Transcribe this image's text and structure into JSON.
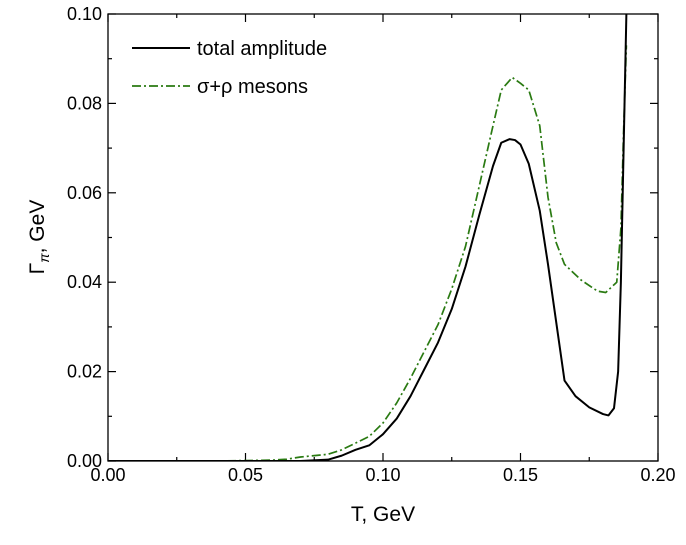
{
  "chart_data": {
    "type": "line",
    "xlabel": "T, GeV",
    "ylabel": {
      "symbol": "Γ",
      "subscript": "π",
      "suffix": ", GeV"
    },
    "xlim": [
      0.0,
      0.2
    ],
    "ylim": [
      0.0,
      0.1
    ],
    "xticks": [
      "0.00",
      "0.05",
      "0.10",
      "0.15",
      "0.20"
    ],
    "yticks": [
      "0.00",
      "0.02",
      "0.04",
      "0.06",
      "0.08",
      "0.10"
    ],
    "grid": false,
    "legend_position": "top-left",
    "series": [
      {
        "name": "total amplitude",
        "color": "#000000",
        "style": "solid",
        "points": [
          [
            0.0,
            0.0
          ],
          [
            0.04,
            0.0
          ],
          [
            0.07,
            0.0
          ],
          [
            0.08,
            0.0003
          ],
          [
            0.085,
            0.0012
          ],
          [
            0.09,
            0.0025
          ],
          [
            0.095,
            0.0035
          ],
          [
            0.1,
            0.006
          ],
          [
            0.105,
            0.0095
          ],
          [
            0.11,
            0.0145
          ],
          [
            0.115,
            0.0205
          ],
          [
            0.12,
            0.0265
          ],
          [
            0.125,
            0.034
          ],
          [
            0.13,
            0.0435
          ],
          [
            0.135,
            0.055
          ],
          [
            0.14,
            0.066
          ],
          [
            0.143,
            0.0712
          ],
          [
            0.146,
            0.072
          ],
          [
            0.148,
            0.0718
          ],
          [
            0.15,
            0.0708
          ],
          [
            0.153,
            0.0665
          ],
          [
            0.157,
            0.056
          ],
          [
            0.16,
            0.044
          ],
          [
            0.163,
            0.031
          ],
          [
            0.166,
            0.018
          ],
          [
            0.17,
            0.0145
          ],
          [
            0.175,
            0.012
          ],
          [
            0.18,
            0.0105
          ],
          [
            0.182,
            0.0102
          ],
          [
            0.184,
            0.0118
          ],
          [
            0.1855,
            0.02
          ],
          [
            0.1865,
            0.04
          ],
          [
            0.1875,
            0.07
          ],
          [
            0.1885,
            0.1
          ]
        ]
      },
      {
        "name": "σ+ρ mesons",
        "color": "#2a7a12",
        "style": "dash-dot",
        "points": [
          [
            0.0,
            0.0
          ],
          [
            0.04,
            0.0
          ],
          [
            0.06,
            0.0002
          ],
          [
            0.065,
            0.0004
          ],
          [
            0.07,
            0.0009
          ],
          [
            0.08,
            0.0015
          ],
          [
            0.085,
            0.0025
          ],
          [
            0.09,
            0.004
          ],
          [
            0.095,
            0.0055
          ],
          [
            0.1,
            0.0085
          ],
          [
            0.105,
            0.013
          ],
          [
            0.11,
            0.0185
          ],
          [
            0.115,
            0.0245
          ],
          [
            0.12,
            0.0305
          ],
          [
            0.125,
            0.0385
          ],
          [
            0.13,
            0.048
          ],
          [
            0.135,
            0.0615
          ],
          [
            0.14,
            0.075
          ],
          [
            0.143,
            0.083
          ],
          [
            0.147,
            0.0858
          ],
          [
            0.15,
            0.0845
          ],
          [
            0.153,
            0.083
          ],
          [
            0.157,
            0.075
          ],
          [
            0.16,
            0.059
          ],
          [
            0.163,
            0.0488
          ],
          [
            0.166,
            0.044
          ],
          [
            0.172,
            0.0405
          ],
          [
            0.178,
            0.038
          ],
          [
            0.181,
            0.0377
          ],
          [
            0.185,
            0.04
          ],
          [
            0.1865,
            0.052
          ],
          [
            0.1875,
            0.074
          ],
          [
            0.1885,
            0.093
          ]
        ]
      }
    ]
  }
}
